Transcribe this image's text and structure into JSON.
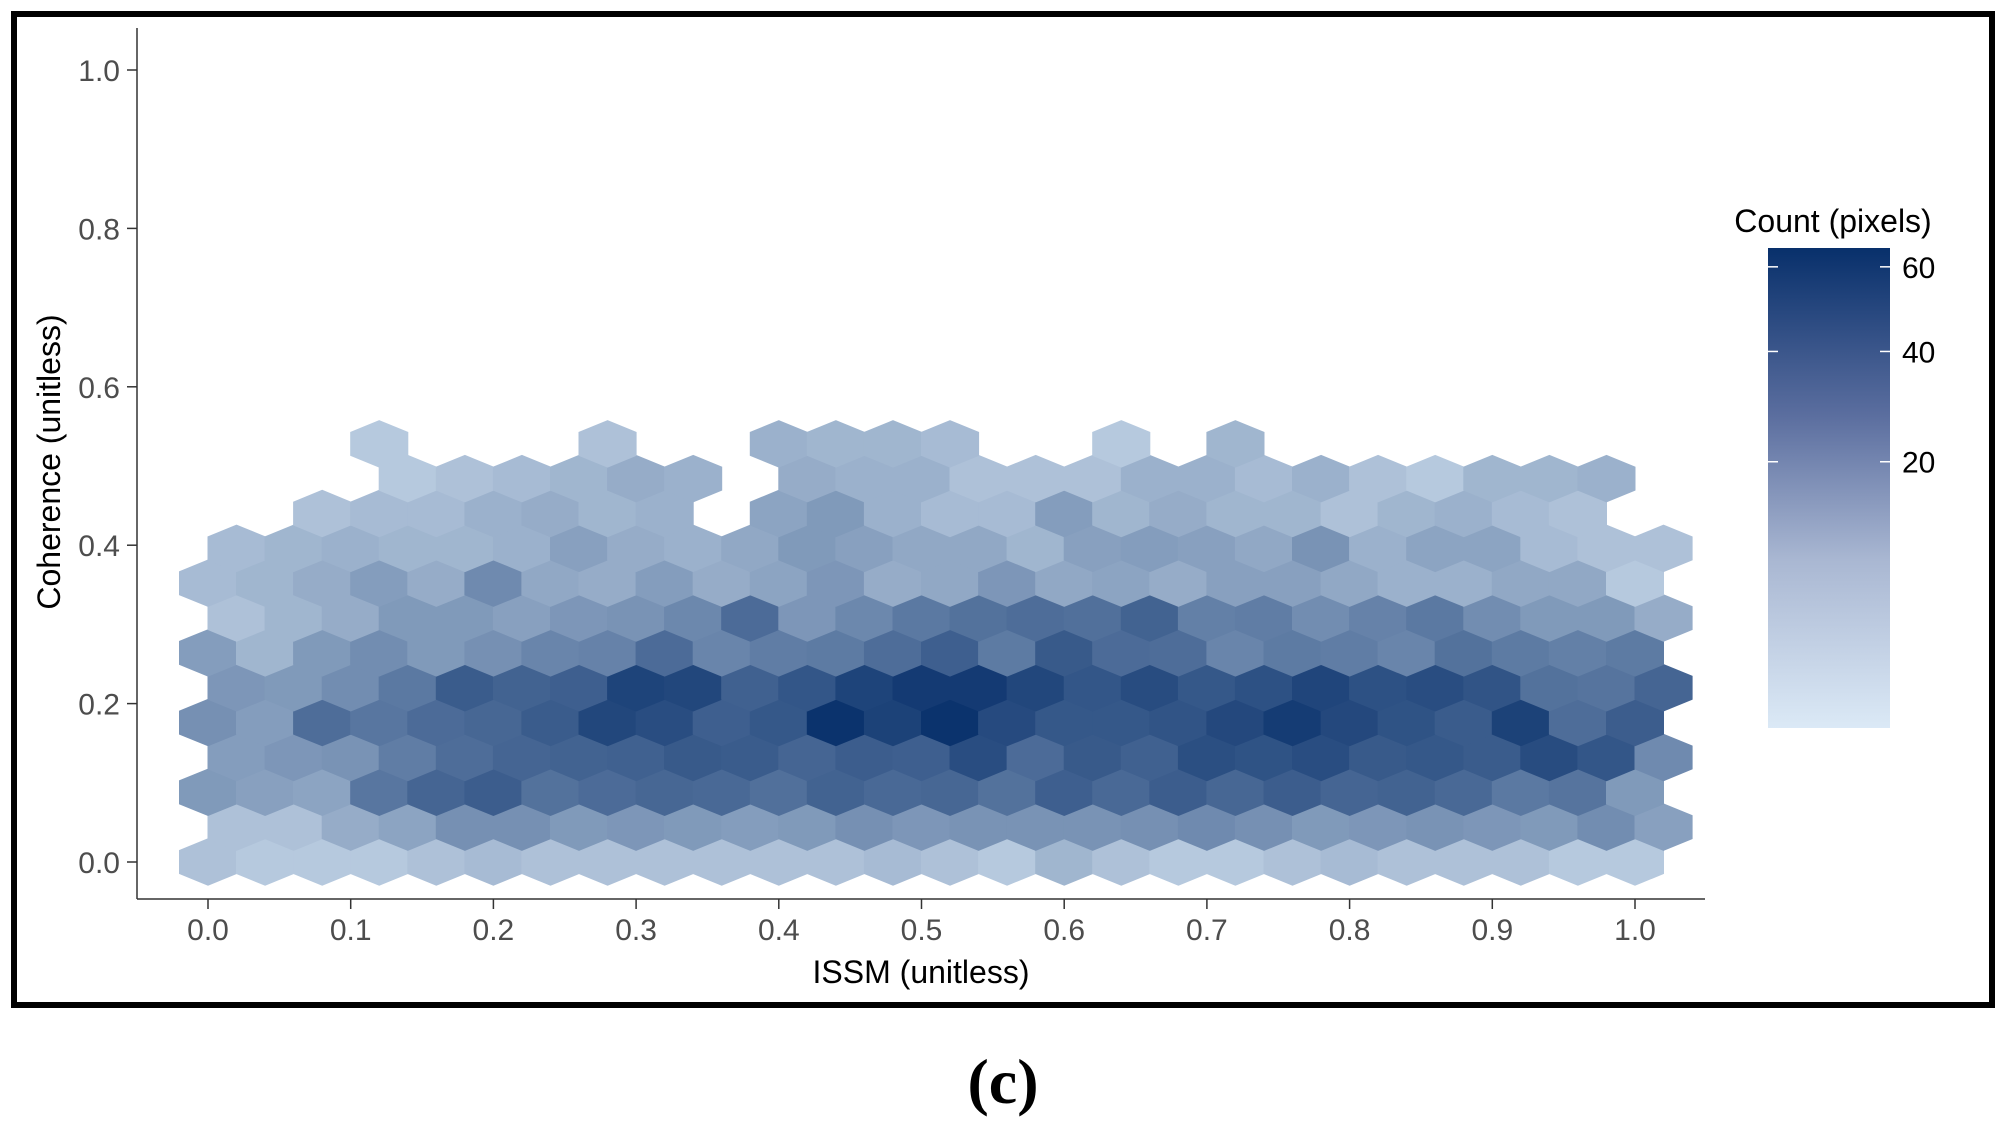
{
  "caption": "(c)",
  "chart_data": {
    "type": "heatmap",
    "subtype": "hexbin",
    "xlabel": "ISSM (unitless)",
    "ylabel": "Coherence (unitless)",
    "xlim": [
      -0.05,
      1.05
    ],
    "ylim": [
      -0.05,
      1.05
    ],
    "xticks": [
      0.0,
      0.1,
      0.2,
      0.3,
      0.4,
      0.5,
      0.6,
      0.7,
      0.8,
      0.9,
      1.0
    ],
    "xtick_labels": [
      "0.0",
      "0.1",
      "0.2",
      "0.3",
      "0.4",
      "0.5",
      "0.6",
      "0.7",
      "0.8",
      "0.9",
      "1.0"
    ],
    "yticks": [
      0.0,
      0.2,
      0.4,
      0.6,
      0.8,
      1.0
    ],
    "ytick_labels": [
      "0.0",
      "0.2",
      "0.4",
      "0.6",
      "0.8",
      "1.0"
    ],
    "grid": false,
    "legend": {
      "title": "Count (pixels)",
      "position": "right",
      "ticks": [
        20,
        40,
        60
      ],
      "tick_labels": [
        "20",
        "40",
        "60"
      ],
      "range": [
        1,
        65
      ],
      "low_color": "#dbe9f6",
      "high_color": "#08306b",
      "scale": "sqrt"
    },
    "hex_grid": {
      "x_start": 0.0,
      "x_step": 0.04,
      "x_cols": 26,
      "y_start": 0.0,
      "y_step": 0.044,
      "y_rows": 21,
      "odd_row_x_offset": 0.02
    },
    "rows": [
      [
        3,
        2,
        2,
        2,
        3,
        4,
        3,
        3,
        3,
        3,
        3,
        3,
        4,
        3,
        2,
        5,
        3,
        2,
        2,
        3,
        4,
        3,
        3,
        3,
        2,
        2,
        3
      ],
      [
        3,
        3,
        7,
        9,
        15,
        15,
        12,
        13,
        12,
        11,
        12,
        15,
        13,
        14,
        14,
        14,
        15,
        17,
        15,
        12,
        13,
        14,
        13,
        12,
        16,
        10
      ],
      [
        12,
        10,
        9,
        25,
        33,
        37,
        27,
        30,
        32,
        31,
        28,
        34,
        31,
        32,
        27,
        36,
        31,
        37,
        32,
        37,
        33,
        34,
        31,
        24,
        26,
        12
      ],
      [
        11,
        13,
        14,
        22,
        29,
        33,
        34,
        35,
        39,
        38,
        33,
        37,
        36,
        46,
        30,
        39,
        35,
        45,
        43,
        46,
        39,
        40,
        38,
        47,
        41,
        17
      ],
      [
        15,
        11,
        29,
        25,
        30,
        32,
        38,
        50,
        46,
        36,
        40,
        63,
        53,
        63,
        48,
        40,
        40,
        42,
        49,
        57,
        49,
        43,
        38,
        53,
        29,
        37,
        52
      ],
      [
        13,
        12,
        16,
        24,
        38,
        34,
        36,
        52,
        50,
        35,
        41,
        52,
        58,
        58,
        50,
        41,
        47,
        40,
        44,
        51,
        44,
        46,
        42,
        27,
        26,
        33
      ],
      [
        11,
        5,
        12,
        16,
        12,
        15,
        19,
        20,
        30,
        19,
        22,
        23,
        29,
        36,
        23,
        39,
        30,
        29,
        19,
        23,
        22,
        19,
        27,
        23,
        21,
        23,
        23
      ],
      [
        3,
        5,
        7,
        12,
        12,
        10,
        13,
        14,
        18,
        30,
        13,
        18,
        24,
        27,
        29,
        28,
        34,
        21,
        22,
        16,
        20,
        24,
        16,
        12,
        12,
        7
      ],
      [
        4,
        5,
        7,
        11,
        7,
        17,
        8,
        7,
        11,
        7,
        9,
        13,
        7,
        8,
        13,
        8,
        9,
        7,
        10,
        10,
        8,
        6,
        6,
        8,
        8,
        2
      ],
      [
        4,
        5,
        6,
        5,
        5,
        6,
        10,
        7,
        6,
        8,
        12,
        10,
        8,
        8,
        5,
        10,
        11,
        10,
        8,
        14,
        6,
        9,
        9,
        4,
        3,
        3,
        3
      ],
      [
        null,
        null,
        3,
        4,
        4,
        6,
        7,
        5,
        6,
        0,
        9,
        12,
        6,
        4,
        4,
        11,
        5,
        7,
        5,
        5,
        3,
        5,
        6,
        4,
        3,
        null,
        null
      ],
      [
        null,
        null,
        null,
        2,
        3,
        4,
        5,
        7,
        6,
        null,
        7,
        6,
        6,
        3,
        3,
        3,
        6,
        6,
        4,
        6,
        3,
        2,
        5,
        5,
        6,
        null,
        null
      ],
      [
        null,
        null,
        null,
        2,
        null,
        null,
        null,
        3,
        null,
        null,
        6,
        5,
        5,
        4,
        null,
        null,
        2,
        null,
        5,
        null,
        null,
        null,
        null,
        null,
        null,
        null,
        null
      ],
      [
        null,
        null,
        null,
        null,
        null,
        null,
        null,
        null,
        null,
        null,
        null,
        null,
        null,
        null,
        null,
        null,
        null,
        null,
        null,
        null,
        null,
        null,
        null,
        null,
        null,
        null,
        null
      ],
      [
        null,
        null,
        null,
        null,
        null,
        null,
        null,
        null,
        null,
        null,
        null,
        null,
        null,
        null,
        null,
        null,
        null,
        null,
        null,
        null,
        null,
        null,
        null,
        null,
        null,
        null,
        null
      ]
    ]
  }
}
